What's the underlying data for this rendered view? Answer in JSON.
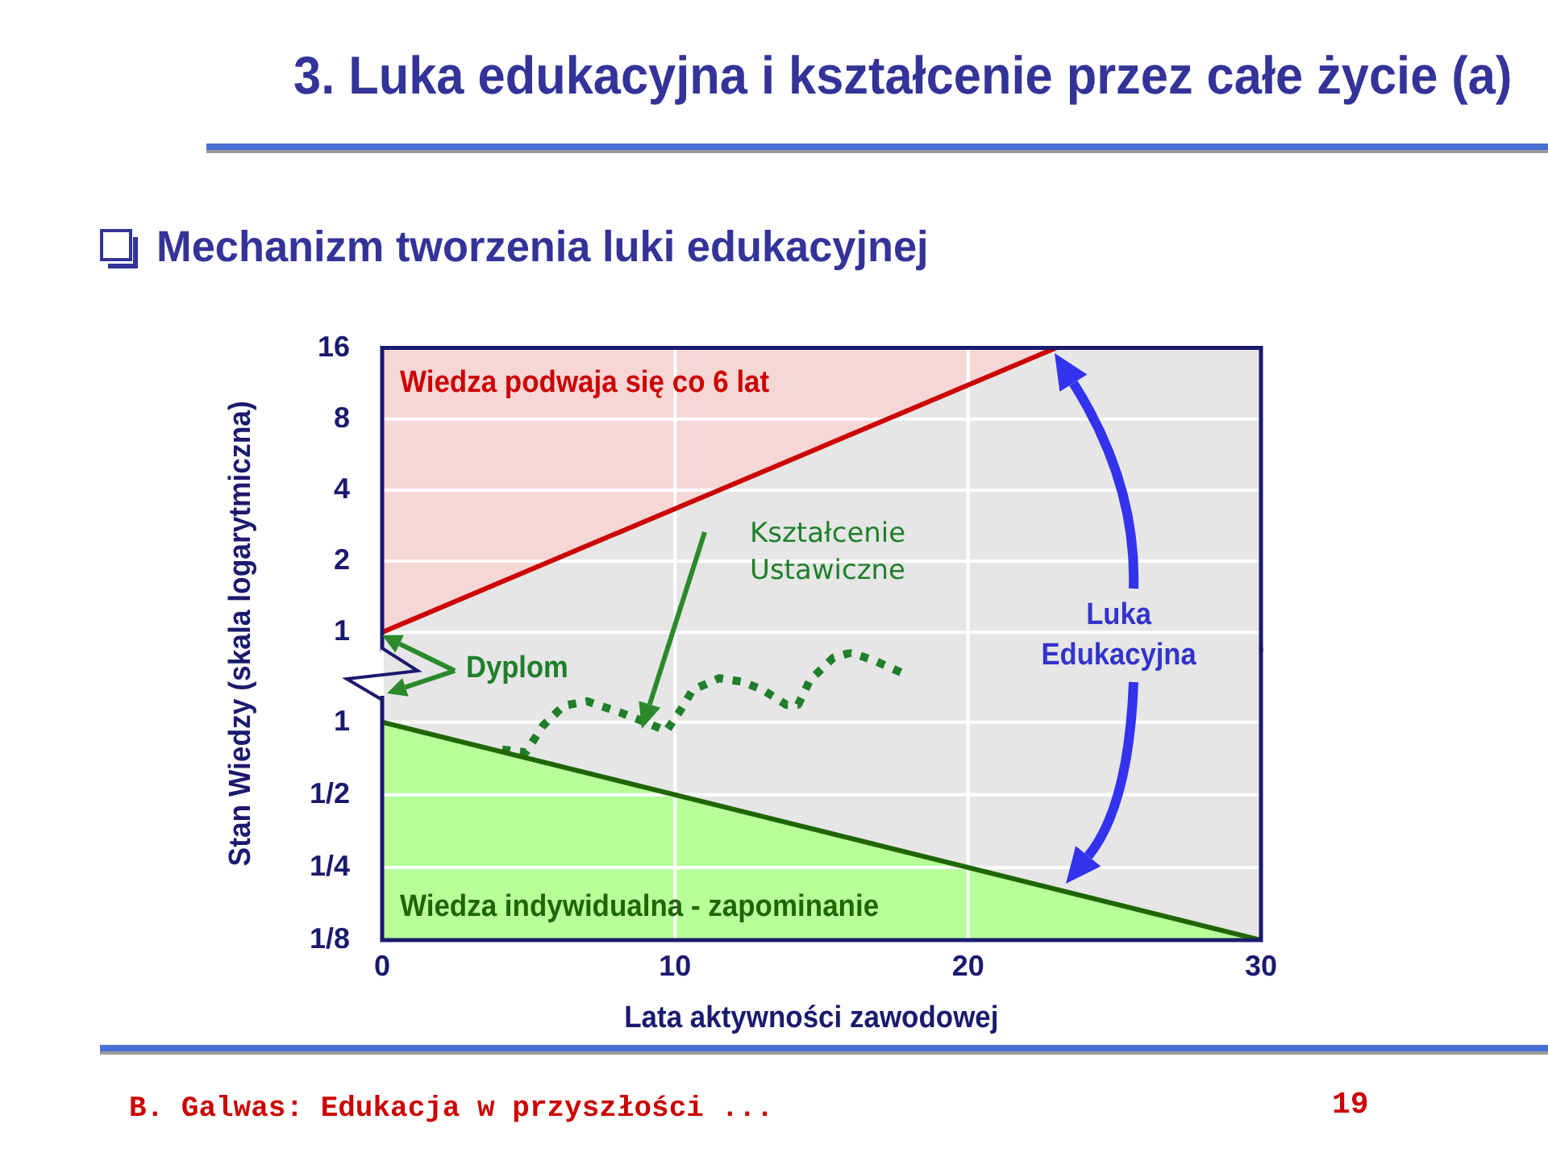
{
  "chart_data": [
    {
      "type": "line",
      "title": "3. Luka edukacyjna i kształcenie przez całe życie (a)",
      "subtitle": "Mechanizm tworzenia luki edukacyjnej",
      "ylabel": "Stan Wiedzy (skala logarytmiczna)",
      "xlim": [
        0,
        30
      ],
      "xticks": [
        0,
        10,
        20,
        30
      ],
      "ylim": [
        0.84,
        16
      ],
      "yticks": [
        1,
        2,
        4,
        8,
        16
      ],
      "log": true,
      "grid": true,
      "tick_labels": "y",
      "marker": "none",
      "series": [
        {
          "name": "Wiedza podwaja się co 6 lat",
          "color": "#cc0000",
          "x": [
            0,
            23
          ],
          "values": [
            1,
            16
          ],
          "lower": [
            1,
            16
          ],
          "upper": [
            16,
            16
          ]
        }
      ]
    },
    {
      "type": "line",
      "xlabel": "Lata aktywności zawodowej",
      "annotations": [
        "Dyplom",
        "Luka Edukacyjna",
        "B. Galwas: Edukacja w przyszłości ...",
        "19"
      ],
      "xlim": [
        0,
        30
      ],
      "xticks": [
        0,
        10,
        20,
        30
      ],
      "ylim": [
        0.125,
        2
      ],
      "yticks": [
        1,
        {
          "value": 0.5,
          "label": "1/2"
        },
        {
          "value": 0.25,
          "label": "1/4"
        },
        {
          "value": 0.125,
          "label": "1/8"
        }
      ],
      "log": true,
      "grid": true,
      "marker": "none",
      "series": [
        {
          "type": "area",
          "name": "Wiedza indywidualna - zapominanie",
          "color": "#1f6600",
          "x": [
            0,
            30
          ],
          "values": [
            1,
            0.125
          ]
        },
        {
          "name": "Kształcenie Ustawiczne",
          "color": "#1f7f2a",
          "line_style": "dotted",
          "x": [
            4.1,
            4.9,
            5.5,
            6.2,
            7.0,
            8.1,
            8.8,
            9.7,
            10.1,
            10.6,
            11.5,
            12.3,
            13.0,
            13.8,
            14.2,
            14.6,
            15.4,
            16.0,
            16.8,
            17.8
          ],
          "values": [
            0.77,
            0.75,
            0.97,
            1.17,
            1.22,
            1.1,
            1.02,
            0.92,
            1.08,
            1.36,
            1.52,
            1.47,
            1.36,
            1.18,
            1.18,
            1.49,
            1.85,
            1.94,
            1.8,
            1.59
          ]
        }
      ]
    }
  ]
}
